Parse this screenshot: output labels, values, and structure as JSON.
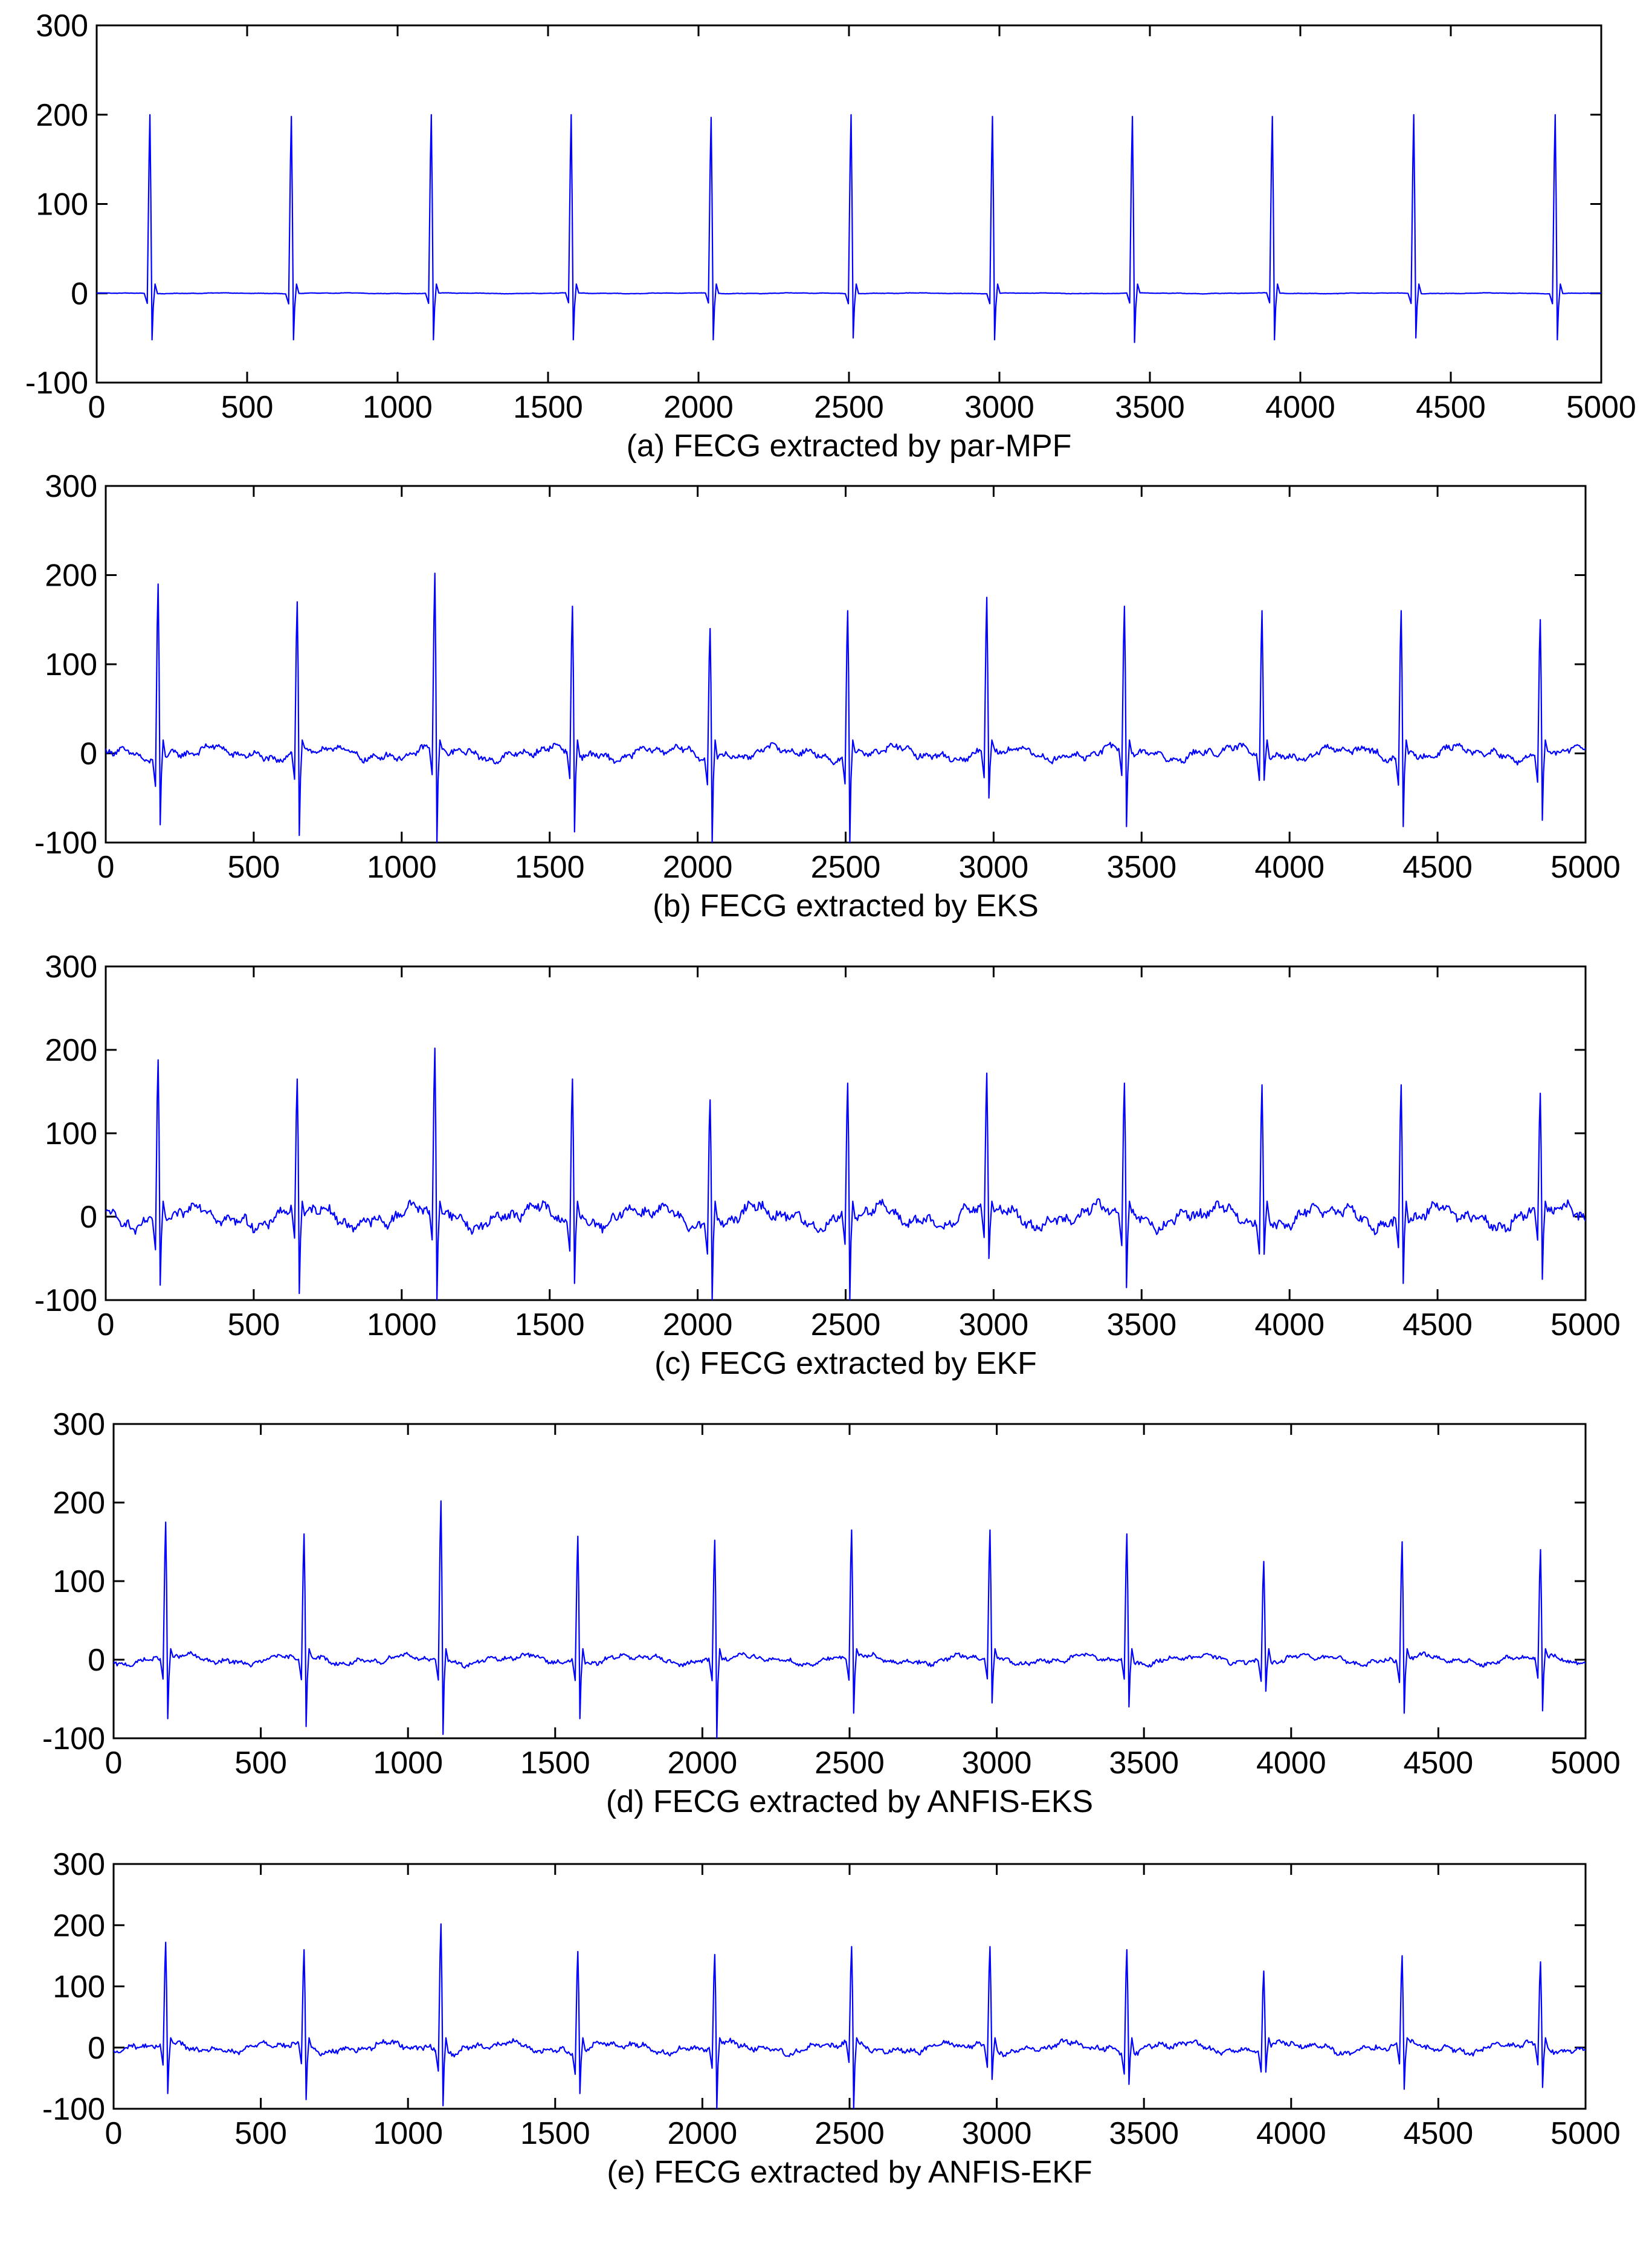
{
  "figure": {
    "trace_color": "#0000ff",
    "axis_color": "#000000"
  },
  "chart_data": [
    {
      "type": "line",
      "title": "",
      "caption": "(a) FECG extracted by par-MPF",
      "xlabel": "",
      "ylabel": "",
      "xlim": [
        0,
        5000
      ],
      "ylim": [
        -100,
        300
      ],
      "xticks": [
        0,
        500,
        1000,
        1500,
        2000,
        2500,
        3000,
        3500,
        4000,
        4500,
        5000
      ],
      "yticks": [
        -100,
        0,
        100,
        200,
        300
      ],
      "grid": false,
      "series": [
        {
          "name": "par-MPF",
          "beats": [
            {
              "x": 180,
              "peak": 200,
              "trough": -52
            },
            {
              "x": 650,
              "peak": 198,
              "trough": -52
            },
            {
              "x": 1115,
              "peak": 200,
              "trough": -52
            },
            {
              "x": 1580,
              "peak": 200,
              "trough": -52
            },
            {
              "x": 2045,
              "peak": 197,
              "trough": -52
            },
            {
              "x": 2510,
              "peak": 200,
              "trough": -50
            },
            {
              "x": 2980,
              "peak": 198,
              "trough": -52
            },
            {
              "x": 3445,
              "peak": 198,
              "trough": -55
            },
            {
              "x": 3910,
              "peak": 198,
              "trough": -52
            },
            {
              "x": 4380,
              "peak": 200,
              "trough": -50
            },
            {
              "x": 4850,
              "peak": 200,
              "trough": -52
            }
          ],
          "baseline_noise": 0.6
        }
      ]
    },
    {
      "type": "line",
      "title": "",
      "caption": "(b) FECG extracted by EKS",
      "xlabel": "",
      "ylabel": "",
      "xlim": [
        0,
        5000
      ],
      "ylim": [
        -100,
        300
      ],
      "xticks": [
        0,
        500,
        1000,
        1500,
        2000,
        2500,
        3000,
        3500,
        4000,
        4500,
        5000
      ],
      "yticks": [
        -100,
        0,
        100,
        200,
        300
      ],
      "grid": false,
      "series": [
        {
          "name": "EKS",
          "beats": [
            {
              "x": 180,
              "peak": 190,
              "trough": -80
            },
            {
              "x": 650,
              "peak": 170,
              "trough": -92
            },
            {
              "x": 1115,
              "peak": 202,
              "trough": -100
            },
            {
              "x": 1580,
              "peak": 165,
              "trough": -88
            },
            {
              "x": 2045,
              "peak": 140,
              "trough": -100
            },
            {
              "x": 2510,
              "peak": 160,
              "trough": -100
            },
            {
              "x": 2980,
              "peak": 175,
              "trough": -50
            },
            {
              "x": 3445,
              "peak": 165,
              "trough": -82
            },
            {
              "x": 3910,
              "peak": 160,
              "trough": -30
            },
            {
              "x": 4380,
              "peak": 160,
              "trough": -82
            },
            {
              "x": 4850,
              "peak": 150,
              "trough": -75
            }
          ],
          "baseline_noise": 10
        }
      ]
    },
    {
      "type": "line",
      "title": "",
      "caption": "(c) FECG extracted by EKF",
      "xlabel": "",
      "ylabel": "",
      "xlim": [
        0,
        5000
      ],
      "ylim": [
        -100,
        300
      ],
      "xticks": [
        0,
        500,
        1000,
        1500,
        2000,
        2500,
        3000,
        3500,
        4000,
        4500,
        5000
      ],
      "yticks": [
        -100,
        0,
        100,
        200,
        300
      ],
      "grid": false,
      "series": [
        {
          "name": "EKF",
          "beats": [
            {
              "x": 180,
              "peak": 188,
              "trough": -82
            },
            {
              "x": 650,
              "peak": 165,
              "trough": -92
            },
            {
              "x": 1115,
              "peak": 202,
              "trough": -100
            },
            {
              "x": 1580,
              "peak": 165,
              "trough": -80
            },
            {
              "x": 2045,
              "peak": 140,
              "trough": -100
            },
            {
              "x": 2510,
              "peak": 160,
              "trough": -100
            },
            {
              "x": 2980,
              "peak": 172,
              "trough": -50
            },
            {
              "x": 3445,
              "peak": 160,
              "trough": -85
            },
            {
              "x": 3910,
              "peak": 158,
              "trough": -45
            },
            {
              "x": 4380,
              "peak": 158,
              "trough": -80
            },
            {
              "x": 4850,
              "peak": 148,
              "trough": -75
            }
          ],
          "baseline_noise": 17
        }
      ]
    },
    {
      "type": "line",
      "title": "",
      "caption": "(d) FECG extracted by ANFIS-EKS",
      "xlabel": "",
      "ylabel": "",
      "xlim": [
        0,
        5000
      ],
      "ylim": [
        -100,
        300
      ],
      "xticks": [
        0,
        500,
        1000,
        1500,
        2000,
        2500,
        3000,
        3500,
        4000,
        4500,
        5000
      ],
      "yticks": [
        -100,
        0,
        100,
        200,
        300
      ],
      "grid": false,
      "series": [
        {
          "name": "ANFIS-EKS",
          "beats": [
            {
              "x": 180,
              "peak": 175,
              "trough": -75
            },
            {
              "x": 650,
              "peak": 160,
              "trough": -85
            },
            {
              "x": 1115,
              "peak": 202,
              "trough": -95
            },
            {
              "x": 1580,
              "peak": 157,
              "trough": -75
            },
            {
              "x": 2045,
              "peak": 152,
              "trough": -100
            },
            {
              "x": 2510,
              "peak": 165,
              "trough": -68
            },
            {
              "x": 2980,
              "peak": 165,
              "trough": -55
            },
            {
              "x": 3445,
              "peak": 160,
              "trough": -60
            },
            {
              "x": 3910,
              "peak": 125,
              "trough": -40
            },
            {
              "x": 4380,
              "peak": 150,
              "trough": -68
            },
            {
              "x": 4850,
              "peak": 140,
              "trough": -65
            }
          ],
          "baseline_noise": 8
        }
      ]
    },
    {
      "type": "line",
      "title": "",
      "caption": "(e) FECG extracted by ANFIS-EKF",
      "xlabel": "",
      "ylabel": "",
      "xlim": [
        0,
        5000
      ],
      "ylim": [
        -100,
        300
      ],
      "xticks": [
        0,
        500,
        1000,
        1500,
        2000,
        2500,
        3000,
        3500,
        4000,
        4500,
        5000
      ],
      "yticks": [
        -100,
        0,
        100,
        200,
        300
      ],
      "grid": false,
      "series": [
        {
          "name": "ANFIS-EKF",
          "beats": [
            {
              "x": 180,
              "peak": 172,
              "trough": -75
            },
            {
              "x": 650,
              "peak": 160,
              "trough": -85
            },
            {
              "x": 1115,
              "peak": 202,
              "trough": -95
            },
            {
              "x": 1580,
              "peak": 157,
              "trough": -75
            },
            {
              "x": 2045,
              "peak": 152,
              "trough": -100
            },
            {
              "x": 2510,
              "peak": 165,
              "trough": -100
            },
            {
              "x": 2980,
              "peak": 165,
              "trough": -52
            },
            {
              "x": 3445,
              "peak": 160,
              "trough": -60
            },
            {
              "x": 3910,
              "peak": 125,
              "trough": -40
            },
            {
              "x": 4380,
              "peak": 150,
              "trough": -68
            },
            {
              "x": 4850,
              "peak": 140,
              "trough": -65
            }
          ],
          "baseline_noise": 12
        }
      ]
    }
  ]
}
